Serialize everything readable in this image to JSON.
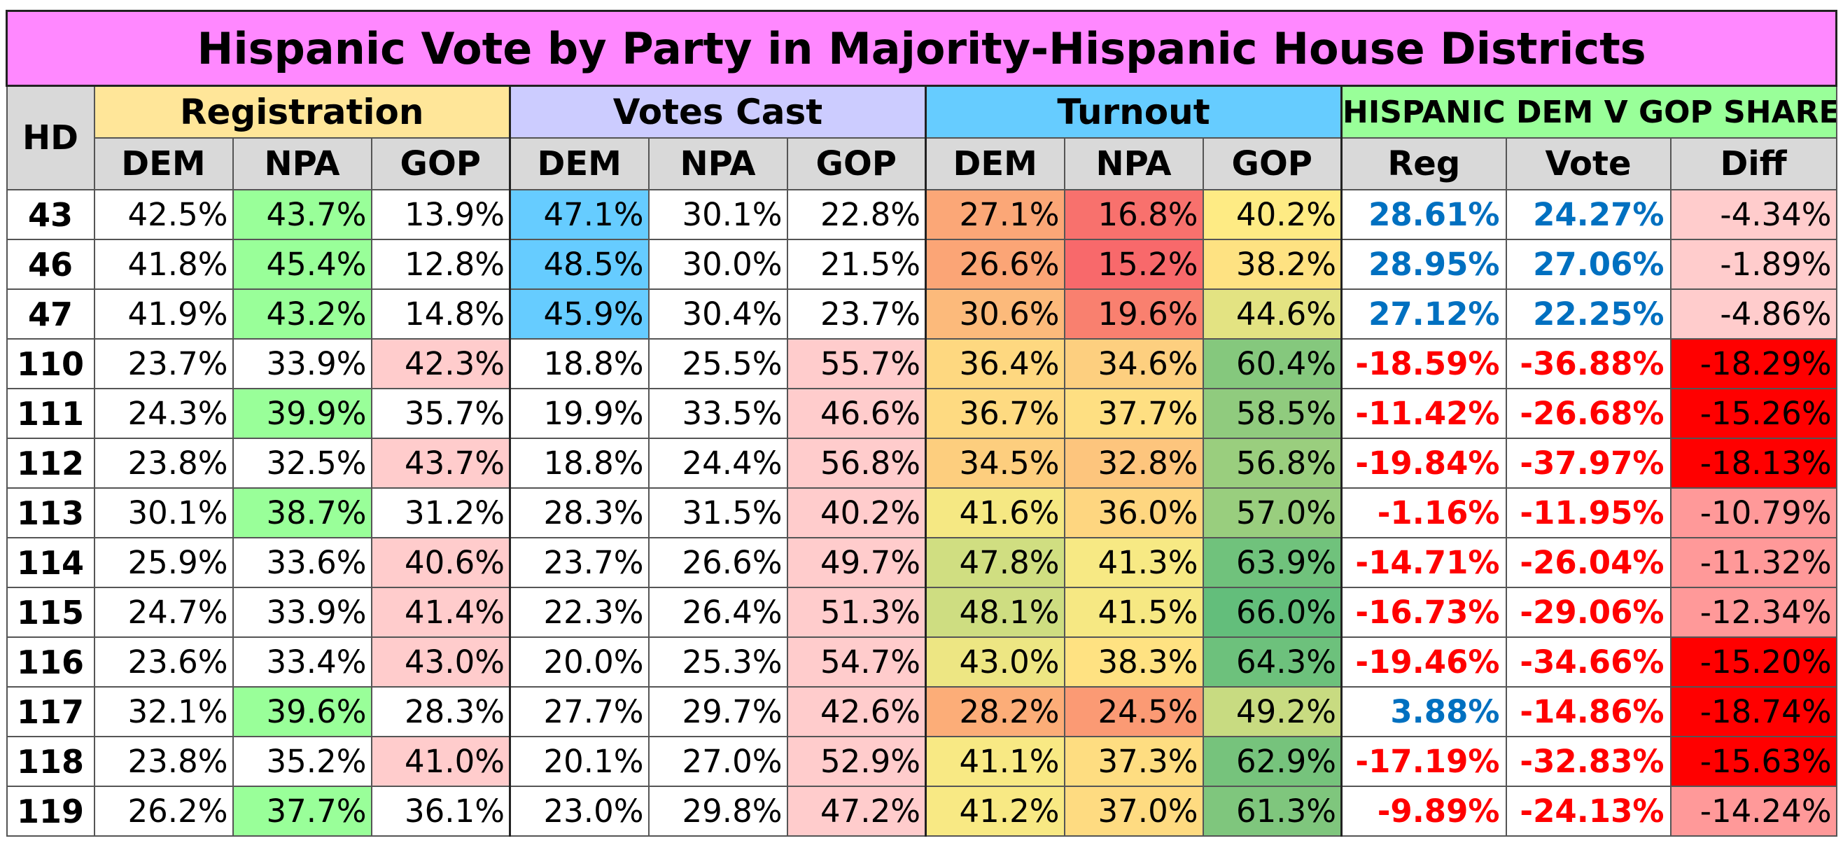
{
  "chart_data": {
    "type": "table",
    "title": "Hispanic Vote by Party in Majority-Hispanic House Districts",
    "groups": [
      "Registration",
      "Votes Cast",
      "Turnout",
      "HISPANIC DEM V GOP SHARE"
    ],
    "columns": {
      "hd": "HD",
      "reg": [
        "DEM",
        "NPA",
        "GOP"
      ],
      "votes": [
        "DEM",
        "NPA",
        "GOP"
      ],
      "turnout": [
        "DEM",
        "NPA",
        "GOP"
      ],
      "share": [
        "Reg",
        "Vote",
        "Diff"
      ]
    },
    "rows": [
      {
        "hd": "43",
        "reg": [
          "42.5%",
          "43.7%",
          "13.9%"
        ],
        "votes": [
          "47.1%",
          "30.1%",
          "22.8%"
        ],
        "turnout": [
          "27.1%",
          "16.8%",
          "40.2%"
        ],
        "share": [
          "28.61%",
          "24.27%",
          "-4.34%"
        ]
      },
      {
        "hd": "46",
        "reg": [
          "41.8%",
          "45.4%",
          "12.8%"
        ],
        "votes": [
          "48.5%",
          "30.0%",
          "21.5%"
        ],
        "turnout": [
          "26.6%",
          "15.2%",
          "38.2%"
        ],
        "share": [
          "28.95%",
          "27.06%",
          "-1.89%"
        ]
      },
      {
        "hd": "47",
        "reg": [
          "41.9%",
          "43.2%",
          "14.8%"
        ],
        "votes": [
          "45.9%",
          "30.4%",
          "23.7%"
        ],
        "turnout": [
          "30.6%",
          "19.6%",
          "44.6%"
        ],
        "share": [
          "27.12%",
          "22.25%",
          "-4.86%"
        ]
      },
      {
        "hd": "110",
        "reg": [
          "23.7%",
          "33.9%",
          "42.3%"
        ],
        "votes": [
          "18.8%",
          "25.5%",
          "55.7%"
        ],
        "turnout": [
          "36.4%",
          "34.6%",
          "60.4%"
        ],
        "share": [
          "-18.59%",
          "-36.88%",
          "-18.29%"
        ]
      },
      {
        "hd": "111",
        "reg": [
          "24.3%",
          "39.9%",
          "35.7%"
        ],
        "votes": [
          "19.9%",
          "33.5%",
          "46.6%"
        ],
        "turnout": [
          "36.7%",
          "37.7%",
          "58.5%"
        ],
        "share": [
          "-11.42%",
          "-26.68%",
          "-15.26%"
        ]
      },
      {
        "hd": "112",
        "reg": [
          "23.8%",
          "32.5%",
          "43.7%"
        ],
        "votes": [
          "18.8%",
          "24.4%",
          "56.8%"
        ],
        "turnout": [
          "34.5%",
          "32.8%",
          "56.8%"
        ],
        "share": [
          "-19.84%",
          "-37.97%",
          "-18.13%"
        ]
      },
      {
        "hd": "113",
        "reg": [
          "30.1%",
          "38.7%",
          "31.2%"
        ],
        "votes": [
          "28.3%",
          "31.5%",
          "40.2%"
        ],
        "turnout": [
          "41.6%",
          "36.0%",
          "57.0%"
        ],
        "share": [
          "-1.16%",
          "-11.95%",
          "-10.79%"
        ]
      },
      {
        "hd": "114",
        "reg": [
          "25.9%",
          "33.6%",
          "40.6%"
        ],
        "votes": [
          "23.7%",
          "26.6%",
          "49.7%"
        ],
        "turnout": [
          "47.8%",
          "41.3%",
          "63.9%"
        ],
        "share": [
          "-14.71%",
          "-26.04%",
          "-11.32%"
        ]
      },
      {
        "hd": "115",
        "reg": [
          "24.7%",
          "33.9%",
          "41.4%"
        ],
        "votes": [
          "22.3%",
          "26.4%",
          "51.3%"
        ],
        "turnout": [
          "48.1%",
          "41.5%",
          "66.0%"
        ],
        "share": [
          "-16.73%",
          "-29.06%",
          "-12.34%"
        ]
      },
      {
        "hd": "116",
        "reg": [
          "23.6%",
          "33.4%",
          "43.0%"
        ],
        "votes": [
          "20.0%",
          "25.3%",
          "54.7%"
        ],
        "turnout": [
          "43.0%",
          "38.3%",
          "64.3%"
        ],
        "share": [
          "-19.46%",
          "-34.66%",
          "-15.20%"
        ]
      },
      {
        "hd": "117",
        "reg": [
          "32.1%",
          "39.6%",
          "28.3%"
        ],
        "votes": [
          "27.7%",
          "29.7%",
          "42.6%"
        ],
        "turnout": [
          "28.2%",
          "24.5%",
          "49.2%"
        ],
        "share": [
          "3.88%",
          "-14.86%",
          "-18.74%"
        ]
      },
      {
        "hd": "118",
        "reg": [
          "23.8%",
          "35.2%",
          "41.0%"
        ],
        "votes": [
          "20.1%",
          "27.0%",
          "52.9%"
        ],
        "turnout": [
          "41.1%",
          "37.3%",
          "62.9%"
        ],
        "share": [
          "-17.19%",
          "-32.83%",
          "-15.63%"
        ]
      },
      {
        "hd": "119",
        "reg": [
          "26.2%",
          "37.7%",
          "36.1%"
        ],
        "votes": [
          "23.0%",
          "29.8%",
          "47.2%"
        ],
        "turnout": [
          "41.2%",
          "37.0%",
          "61.3%"
        ],
        "share": [
          "-9.89%",
          "-24.13%",
          "-14.24%"
        ]
      }
    ],
    "fill_colors": {
      "npa_highlight": "#99ff99",
      "gop_highlight": "#ffcccc",
      "dem_votes_highlight": "#66ccff",
      "share_positive_text": "#0070c0",
      "share_negative_text": "#ff0000",
      "diff_strong": "#ff0000",
      "diff_medium": "#ff9999",
      "diff_light": "#ffcccc",
      "turnout_scale": [
        "#f8696b",
        "#ffeb84",
        "#63be7b"
      ]
    }
  }
}
